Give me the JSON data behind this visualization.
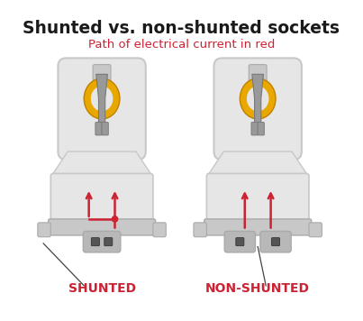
{
  "title": "Shunted vs. non-shunted sockets",
  "subtitle": "Path of electrical current in red",
  "label_left": "SHUNTED",
  "label_right": "NON-SHUNTED",
  "bg_color": "#ffffff",
  "title_color": "#1a1a1a",
  "subtitle_color": "#cc2233",
  "label_color": "#cc2233",
  "arrow_color": "#cc2233",
  "body_light": "#e6e6e6",
  "body_mid": "#c8c8c8",
  "body_dark": "#aaaaaa",
  "yellow": "#e8a800",
  "dark_gray": "#999999",
  "mid_gray": "#b8b8b8",
  "pointer_color": "#444444"
}
